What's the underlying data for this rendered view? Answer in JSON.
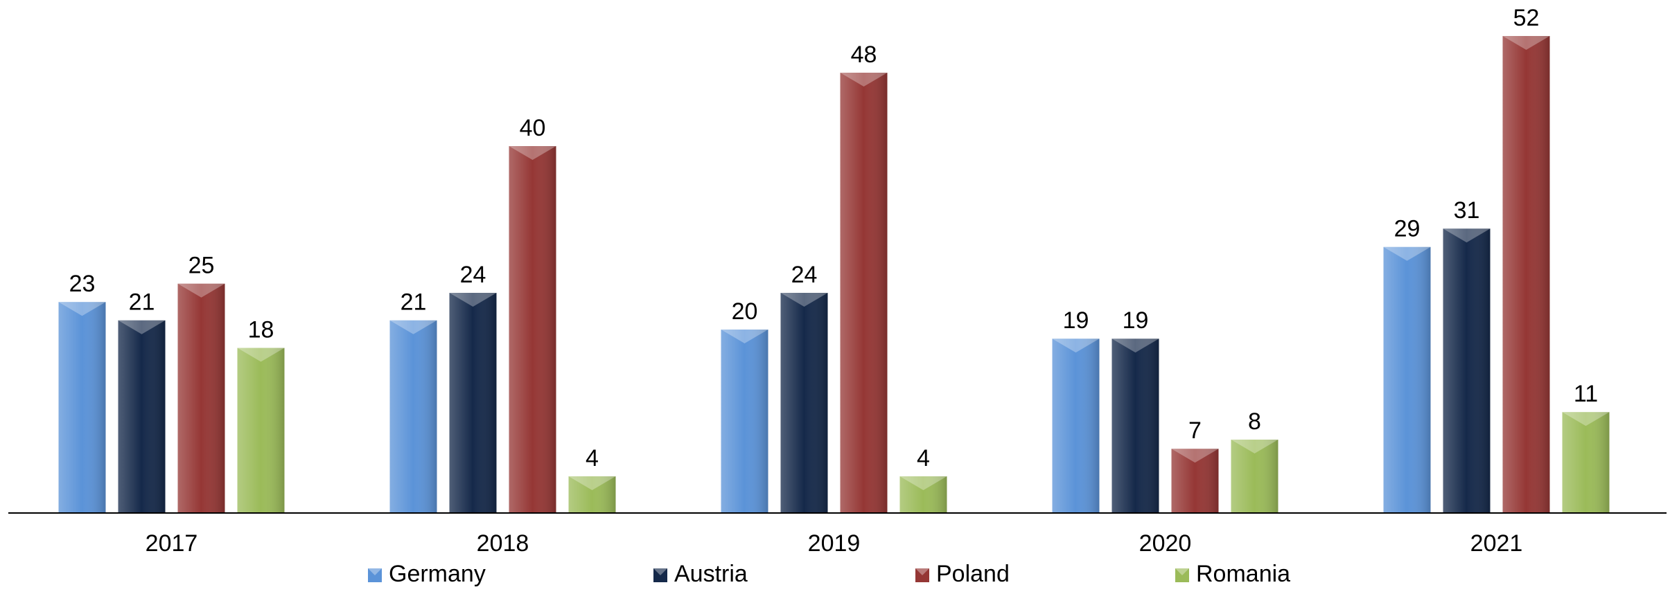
{
  "chart_data": {
    "type": "bar",
    "categories": [
      "2017",
      "2018",
      "2019",
      "2020",
      "2021"
    ],
    "series": [
      {
        "name": "Germany",
        "color": "#5b93d8",
        "values": [
          23,
          21,
          20,
          19,
          29
        ]
      },
      {
        "name": "Austria",
        "color": "#15294a",
        "values": [
          21,
          24,
          24,
          19,
          31
        ]
      },
      {
        "name": "Poland",
        "color": "#953735",
        "values": [
          25,
          40,
          48,
          7,
          52
        ]
      },
      {
        "name": "Romania",
        "color": "#9bbb59",
        "values": [
          18,
          4,
          4,
          8,
          11
        ]
      }
    ],
    "legend": "bottom"
  }
}
